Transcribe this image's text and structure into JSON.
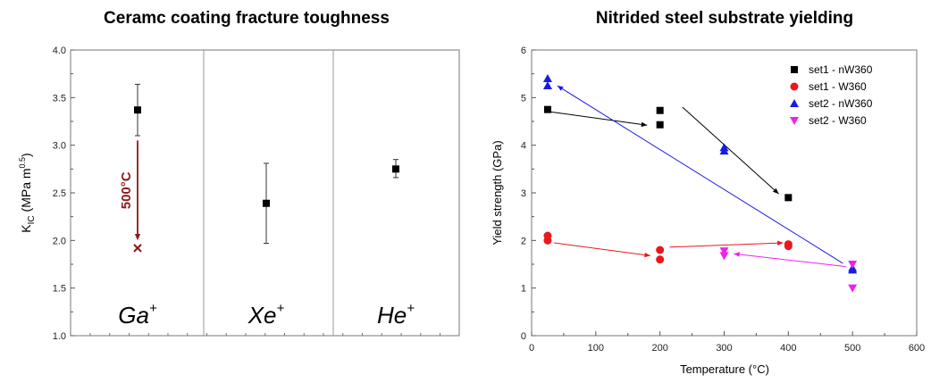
{
  "chart_data": [
    {
      "type": "scatter",
      "title": "Ceramc coating fracture toughness",
      "ylabel_main": "K",
      "ylabel_sub": "IC",
      "ylabel_rest": " (MPa m",
      "ylabel_exp": "0.5",
      "ylabel_close": ")",
      "ylim": [
        1.0,
        4.0
      ],
      "yticks": [
        "1.0",
        "1.5",
        "2.0",
        "2.5",
        "3.0",
        "3.5",
        "4.0"
      ],
      "categories": [
        {
          "base": "Ga",
          "sup": "+"
        },
        {
          "base": "Xe",
          "sup": "+"
        },
        {
          "base": "He",
          "sup": "+"
        }
      ],
      "points": [
        {
          "value": 3.37,
          "err_low": 3.1,
          "err_high": 3.64
        },
        {
          "value": 2.39,
          "err_low": 1.97,
          "err_high": 2.81
        },
        {
          "value": 2.75,
          "err_low": 2.66,
          "err_high": 2.85
        }
      ],
      "annotation": {
        "text": "500°C",
        "from": 3.05,
        "to": 2.0,
        "marker_value": 1.92,
        "color": "#8b1a1a"
      }
    },
    {
      "type": "scatter",
      "title": "Nitrided steel substrate yielding",
      "xlabel": "Temperature (°C)",
      "ylabel": "Yield strength (GPa)",
      "xlim": [
        0,
        600
      ],
      "ylim": [
        0,
        6
      ],
      "xticks": [
        "0",
        "100",
        "200",
        "300",
        "400",
        "500",
        "600"
      ],
      "yticks": [
        "0",
        "1",
        "2",
        "3",
        "4",
        "5",
        "6"
      ],
      "legend_position": "top-right",
      "series": [
        {
          "name": "set1 - nW360",
          "marker": "square",
          "color": "#000000",
          "x": [
            25,
            200,
            200,
            400
          ],
          "y": [
            4.75,
            4.73,
            4.43,
            2.9
          ]
        },
        {
          "name": "set1 - W360",
          "marker": "circle",
          "color": "#e8191c",
          "x": [
            25,
            25,
            200,
            200,
            400,
            400
          ],
          "y": [
            2.1,
            2.0,
            1.8,
            1.6,
            1.92,
            1.88
          ]
        },
        {
          "name": "set2 - nW360",
          "marker": "triangle-up",
          "color": "#1a1ae6",
          "x": [
            25,
            25,
            300,
            300,
            500,
            500
          ],
          "y": [
            5.4,
            5.25,
            3.95,
            3.88,
            1.42,
            1.38
          ]
        },
        {
          "name": "set2 - W360",
          "marker": "triangle-down",
          "color": "#ee22ee",
          "x": [
            300,
            300,
            500,
            500
          ],
          "y": [
            1.78,
            1.68,
            1.5,
            1.0
          ]
        }
      ],
      "arrows": [
        {
          "color": "#000000",
          "from": [
            30,
            4.7
          ],
          "to": [
            180,
            4.42
          ]
        },
        {
          "color": "#000000",
          "from": [
            235,
            4.8
          ],
          "to": [
            385,
            2.98
          ]
        },
        {
          "color": "#1a1ae6",
          "from": [
            485,
            1.52
          ],
          "to": [
            40,
            5.25
          ]
        },
        {
          "color": "#e8191c",
          "from": [
            35,
            1.95
          ],
          "to": [
            185,
            1.68
          ]
        },
        {
          "color": "#e8191c",
          "from": [
            215,
            1.86
          ],
          "to": [
            392,
            1.95
          ]
        },
        {
          "color": "#ee22ee",
          "from": [
            490,
            1.45
          ],
          "to": [
            315,
            1.72
          ]
        }
      ]
    }
  ]
}
